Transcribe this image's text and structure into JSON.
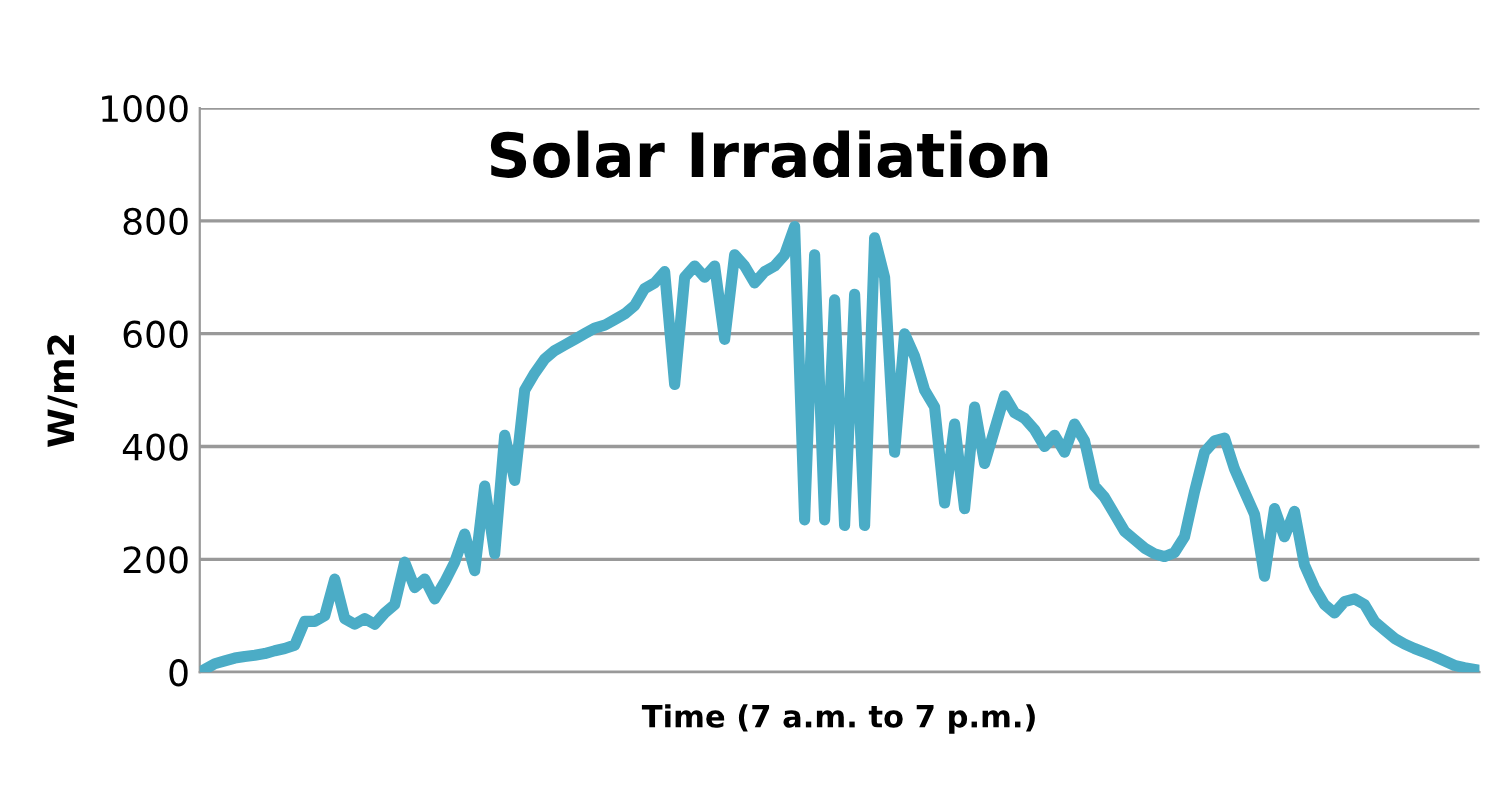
{
  "chart_data": {
    "type": "line",
    "title": "Solar Irradiation",
    "xlabel": "Time (7 a.m. to 7 p.m.)",
    "ylabel": "W/m2",
    "categories": [
      null,
      null,
      null,
      null,
      null,
      null,
      null,
      null,
      null,
      null,
      null,
      null,
      null,
      null,
      null,
      null,
      null,
      null,
      null,
      null,
      null,
      null,
      null,
      null,
      null,
      null,
      null,
      null,
      null,
      null,
      null,
      null,
      null,
      null,
      null,
      null,
      null,
      null,
      null,
      null,
      null,
      null,
      null,
      null,
      null,
      null,
      null,
      null,
      null,
      null,
      null,
      null,
      null,
      null,
      null,
      null,
      null,
      null,
      null,
      null,
      null,
      null,
      null,
      null,
      null,
      null,
      null,
      null,
      null,
      null,
      null,
      null,
      null,
      null,
      null,
      null,
      null,
      null,
      null,
      null,
      null,
      null,
      null,
      null,
      null,
      null,
      null,
      null,
      null,
      null,
      null,
      null,
      null,
      null,
      null,
      null,
      null,
      null,
      null,
      null,
      null,
      null,
      null,
      null,
      null,
      null,
      null,
      null,
      null,
      null,
      null,
      null,
      null,
      null,
      null,
      null,
      null,
      null,
      null,
      null,
      null,
      null,
      null,
      null,
      null,
      null,
      null,
      null
    ],
    "series": [
      {
        "color": "#4bacc6",
        "values": [
          5,
          15,
          20,
          25,
          28,
          30,
          33,
          38,
          42,
          48,
          90,
          90,
          100,
          165,
          95,
          85,
          95,
          85,
          105,
          120,
          195,
          150,
          165,
          130,
          160,
          195,
          245,
          180,
          330,
          210,
          420,
          340,
          500,
          530,
          555,
          570,
          580,
          590,
          600,
          610,
          615,
          625,
          635,
          650,
          680,
          690,
          710,
          510,
          700,
          720,
          700,
          720,
          590,
          740,
          720,
          690,
          710,
          720,
          740,
          790,
          270,
          740,
          270,
          660,
          260,
          670,
          260,
          770,
          700,
          390,
          600,
          560,
          500,
          470,
          300,
          440,
          290,
          470,
          370,
          430,
          490,
          460,
          450,
          430,
          400,
          420,
          390,
          440,
          410,
          330,
          310,
          280,
          250,
          235,
          220,
          210,
          205,
          212,
          240,
          320,
          390,
          410,
          415,
          360,
          320,
          280,
          170,
          290,
          240,
          285,
          190,
          150,
          120,
          105,
          125,
          130,
          120,
          90,
          75,
          60,
          50,
          42,
          35,
          28,
          20,
          12,
          8,
          5
        ]
      }
    ],
    "ylim": [
      0,
      1000
    ],
    "yticks": [
      0,
      200,
      400,
      600,
      800,
      1000
    ],
    "grid": "y",
    "marker": "none",
    "line_style": "solid",
    "legend": false
  }
}
